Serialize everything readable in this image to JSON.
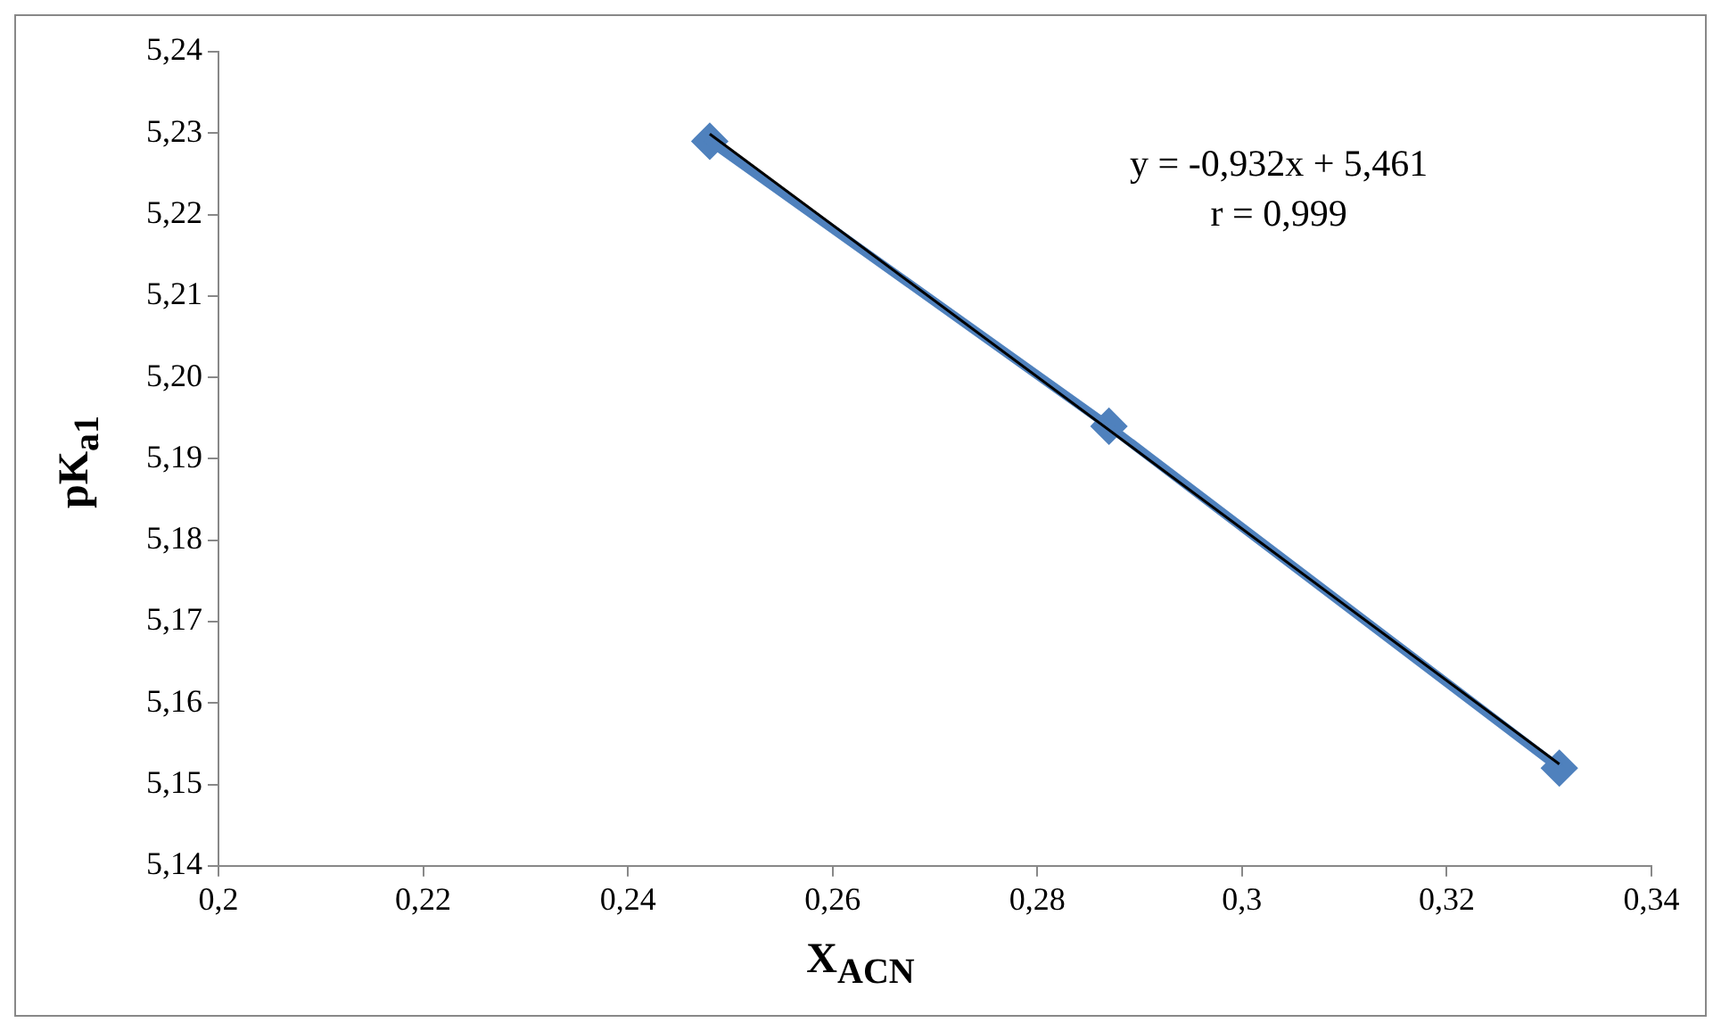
{
  "chart_data": {
    "type": "line",
    "xlabel": "X$_{ACN}$",
    "ylabel": "pK$_{a1}$",
    "annotations": [
      "y = -0,932x + 5,461",
      "r = 0,999"
    ],
    "marker": "diamond",
    "grid": false,
    "legend": false,
    "xlim": [
      0.2,
      0.34
    ],
    "xticks": [
      {
        "value": 0.2,
        "label": "0,2"
      },
      {
        "value": 0.22,
        "label": "0,22"
      },
      {
        "value": 0.24,
        "label": "0,24"
      },
      {
        "value": 0.26,
        "label": "0,26"
      },
      {
        "value": 0.28,
        "label": "0,28"
      },
      {
        "value": 0.3,
        "label": "0,3"
      },
      {
        "value": 0.32,
        "label": "0,32"
      },
      {
        "value": 0.34,
        "label": "0,34"
      }
    ],
    "ylim": [
      5.14,
      5.24
    ],
    "yticks": [
      {
        "value": 5.14,
        "label": "5,14"
      },
      {
        "value": 5.15,
        "label": "5,15"
      },
      {
        "value": 5.16,
        "label": "5,16"
      },
      {
        "value": 5.17,
        "label": "5,17"
      },
      {
        "value": 5.18,
        "label": "5,18"
      },
      {
        "value": 5.19,
        "label": "5,19"
      },
      {
        "value": 5.2,
        "label": "5,20"
      },
      {
        "value": 5.21,
        "label": "5,21"
      },
      {
        "value": 5.22,
        "label": "5,22"
      },
      {
        "value": 5.23,
        "label": "5,23"
      },
      {
        "value": 5.24,
        "label": "5,24"
      }
    ],
    "x": [
      0.248,
      0.287,
      0.331
    ],
    "series": [
      {
        "color": "#4f81bd",
        "values": [
          5.229,
          5.194,
          5.152
        ]
      },
      {
        "type": "line",
        "marker": "none",
        "color": "#000000",
        "x": [
          0.248,
          0.331
        ],
        "values": [
          5.2299,
          5.1525
        ]
      }
    ]
  }
}
